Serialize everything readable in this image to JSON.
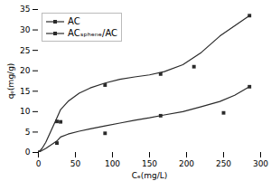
{
  "chart_data": {
    "type": "line",
    "xlabel": "Cₑ(mg/L)",
    "ylabel": "qₑ(mg/g)",
    "xlim": [
      0,
      300
    ],
    "ylim": [
      0,
      35
    ],
    "xticks": [
      0,
      50,
      100,
      150,
      200,
      250,
      300
    ],
    "yticks": [
      0,
      5,
      10,
      15,
      20,
      25,
      30,
      35
    ],
    "grid": false,
    "legend": "upper left",
    "series": [
      {
        "name": "AC",
        "color": "#2a2a2a",
        "line_style": "solid",
        "marker": "square",
        "x": [
          0,
          5,
          10,
          15,
          20,
          25,
          30,
          40,
          55,
          70,
          90,
          110,
          130,
          150,
          170,
          195,
          220,
          245,
          265,
          285
        ],
        "values": [
          0,
          0.5,
          1.0,
          1.6,
          2.2,
          2.8,
          3.8,
          4.5,
          5.2,
          5.8,
          6.5,
          7.2,
          7.9,
          8.5,
          9.2,
          10.0,
          11.2,
          12.5,
          14.0,
          16.1
        ],
        "marker_x": [
          0,
          25,
          30,
          90,
          165,
          250,
          285
        ],
        "marker_values": [
          0,
          2.3,
          7.5,
          4.7,
          9.0,
          9.7,
          16.1
        ]
      },
      {
        "name": "ACₛₚₕₑₙₑ/AC",
        "color": "#2a2a2a",
        "line_style": "solid",
        "marker": "square",
        "x": [
          0,
          5,
          10,
          15,
          20,
          25,
          30,
          40,
          55,
          70,
          90,
          110,
          130,
          150,
          170,
          195,
          220,
          245,
          265,
          285
        ],
        "values": [
          0,
          1.0,
          2.5,
          4.5,
          6.5,
          8.5,
          10.5,
          12.5,
          14.5,
          15.8,
          17.0,
          17.9,
          18.5,
          19.0,
          19.8,
          21.5,
          24.5,
          28.5,
          31.0,
          33.5
        ],
        "marker_x": [
          0,
          25,
          90,
          165,
          210,
          285
        ],
        "marker_values": [
          0,
          7.6,
          16.5,
          19.2,
          21.0,
          33.5
        ]
      }
    ]
  }
}
